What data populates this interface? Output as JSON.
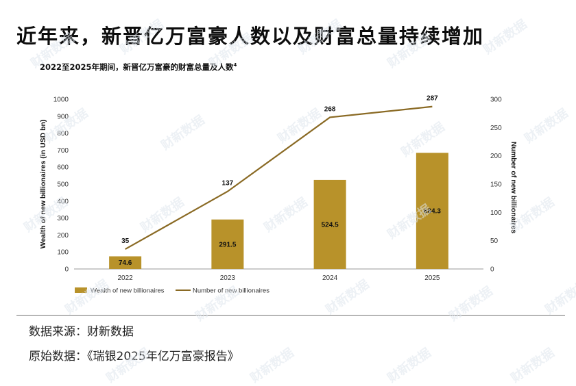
{
  "headline": "近年来，新晋亿万富豪人数以及财富总量持续增加",
  "subtitle": "2022至2025年期间，新晋亿万富豪的财富总量及人数",
  "subtitle_note": "4",
  "source_line": "数据来源：财新数据",
  "origin_line": "原始数据：《瑞银2025年亿万富豪报告》",
  "watermark": "财新数据",
  "colors": {
    "bar": "#b8922a",
    "line": "#8a6a24",
    "axis": "#999999"
  },
  "chart_data": {
    "type": "bar",
    "categories": [
      "2022",
      "2023",
      "2024",
      "2025"
    ],
    "series": [
      {
        "name": "Wealth of new billionaires",
        "type": "bar",
        "axis": "left",
        "values": [
          74.6,
          291.5,
          524.5,
          684.3
        ]
      },
      {
        "name": "Number of new billionaires",
        "type": "line",
        "axis": "right",
        "values": [
          35,
          137,
          268,
          287
        ]
      }
    ],
    "ylabel_left": "Wealth of new billionaires (in USD bn)",
    "ylabel_right": "Number of new billionaires",
    "ylim_left": [
      0,
      1000
    ],
    "yticks_left": [
      0,
      100,
      200,
      300,
      400,
      500,
      600,
      700,
      800,
      900,
      1000
    ],
    "ylim_right": [
      0,
      300
    ],
    "yticks_right": [
      0,
      50,
      100,
      150,
      200,
      250,
      300
    ],
    "grid": false,
    "legend_position": "bottom-left"
  }
}
